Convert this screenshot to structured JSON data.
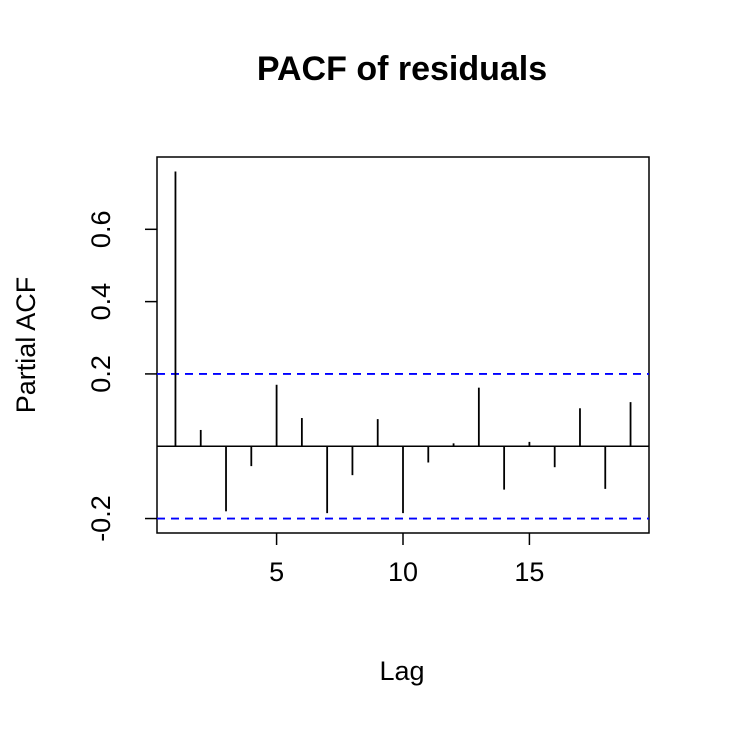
{
  "chart_data": {
    "type": "bar",
    "title": "PACF of residuals",
    "xlabel": "Lag",
    "ylabel": "Partial ACF",
    "xlim": [
      0.27,
      19.73
    ],
    "ylim": [
      -0.24,
      0.8
    ],
    "x": [
      1,
      2,
      3,
      4,
      5,
      6,
      7,
      8,
      9,
      10,
      11,
      12,
      13,
      14,
      15,
      16,
      17,
      18,
      19
    ],
    "values": [
      0.76,
      0.045,
      -0.18,
      -0.055,
      0.17,
      0.078,
      -0.185,
      -0.08,
      0.075,
      -0.185,
      -0.045,
      0.008,
      0.162,
      -0.12,
      0.012,
      -0.058,
      0.105,
      -0.118,
      0.122
    ],
    "x_ticks": [
      5,
      10,
      15
    ],
    "y_ticks": [
      -0.2,
      0.2,
      0.4,
      0.6
    ],
    "confidence_bound": 0.2,
    "grid": false,
    "colors": {
      "bars": "#000000",
      "bounds": "#0000ff",
      "frame": "#000000"
    }
  }
}
